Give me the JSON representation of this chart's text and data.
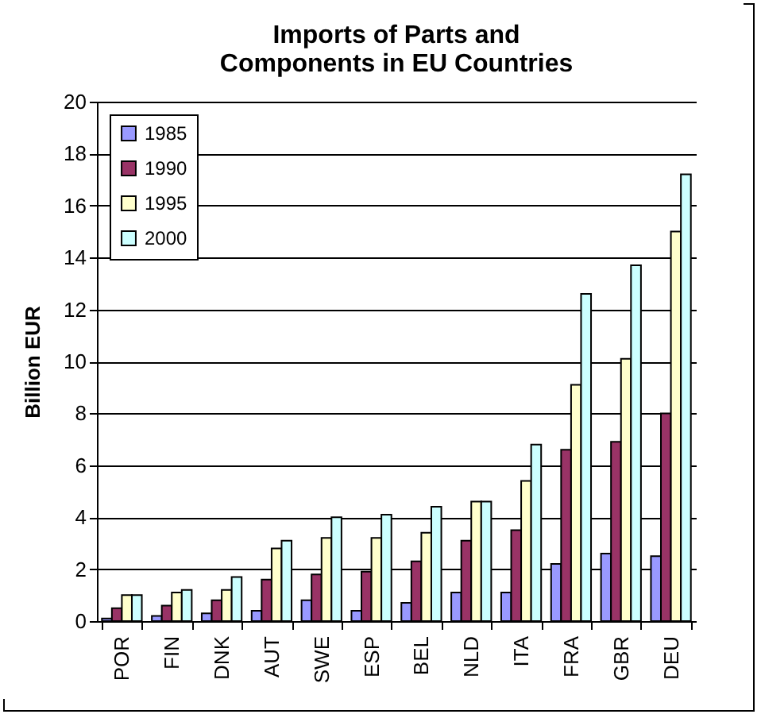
{
  "chart_data": {
    "type": "bar",
    "title": "Imports of Parts and Components in EU Countries",
    "ylabel": "Billion EUR",
    "categories": [
      "POR",
      "FIN",
      "DNK",
      "AUT",
      "SWE",
      "ESP",
      "BEL",
      "NLD",
      "ITA",
      "FRA",
      "GBR",
      "DEU"
    ],
    "series": [
      {
        "name": "1985",
        "color": "#9999ff",
        "values": [
          0.1,
          0.2,
          0.3,
          0.4,
          0.8,
          0.4,
          0.7,
          1.1,
          1.1,
          2.2,
          2.6,
          2.5
        ]
      },
      {
        "name": "1990",
        "color": "#993366",
        "values": [
          0.5,
          0.6,
          0.8,
          1.6,
          1.8,
          1.9,
          2.3,
          3.1,
          3.5,
          6.6,
          6.9,
          8.0
        ]
      },
      {
        "name": "1995",
        "color": "#ffffcc",
        "values": [
          1.0,
          1.1,
          1.2,
          2.8,
          3.2,
          3.2,
          3.4,
          4.6,
          5.4,
          9.1,
          10.1,
          15.0
        ]
      },
      {
        "name": "2000",
        "color": "#ccffff",
        "values": [
          1.0,
          1.2,
          1.7,
          3.1,
          4.0,
          4.1,
          4.4,
          4.6,
          6.8,
          12.6,
          13.7,
          17.2
        ]
      }
    ],
    "ylim": [
      0,
      20
    ],
    "yticks": [
      0,
      2,
      4,
      6,
      8,
      10,
      12,
      14,
      16,
      18,
      20
    ],
    "grid": "y",
    "legend": "top left"
  }
}
